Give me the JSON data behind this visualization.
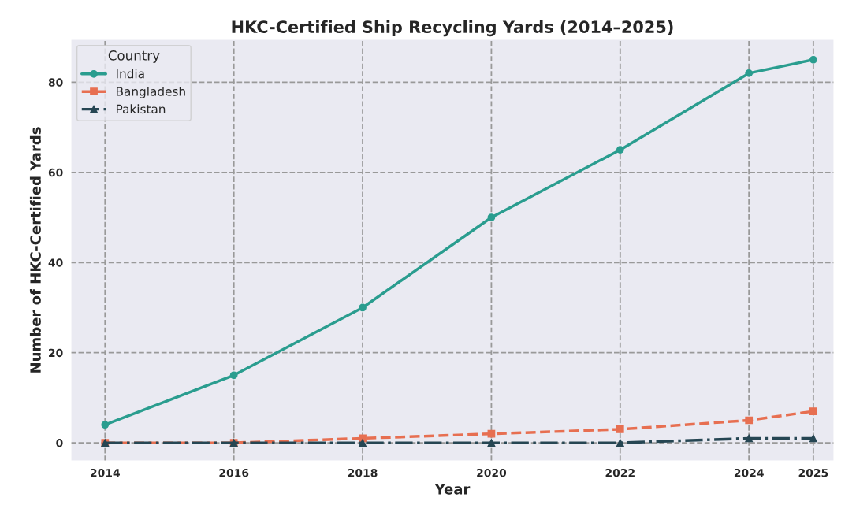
{
  "chart_data": {
    "type": "line",
    "title": "HKC-Certified Ship Recycling Yards (2014–2025)",
    "xlabel": "Year",
    "ylabel": "Number of HKC-Certified Yards",
    "legend_title": "Country",
    "x": [
      2014,
      2016,
      2018,
      2020,
      2022,
      2024,
      2025
    ],
    "series": [
      {
        "name": "India",
        "color": "#2a9d8f",
        "values": [
          4,
          15,
          30,
          50,
          65,
          82,
          85
        ],
        "marker": "circle",
        "line_style": "solid"
      },
      {
        "name": "Bangladesh",
        "color": "#e76f51",
        "values": [
          0,
          0,
          1,
          2,
          3,
          5,
          7
        ],
        "marker": "square",
        "line_style": "dashed"
      },
      {
        "name": "Pakistan",
        "color": "#264653",
        "values": [
          0,
          0,
          0,
          0,
          0,
          1,
          1
        ],
        "marker": "triangle",
        "line_style": "dashdot"
      }
    ],
    "xlim": [
      2013.47,
      2025.32
    ],
    "xticks": [
      2014,
      2016,
      2018,
      2020,
      2022,
      2024,
      2025
    ],
    "ylim": [
      -4,
      89.5
    ],
    "yticks": [
      0,
      20,
      40,
      60,
      80
    ],
    "grid": true,
    "legend": "top left"
  }
}
